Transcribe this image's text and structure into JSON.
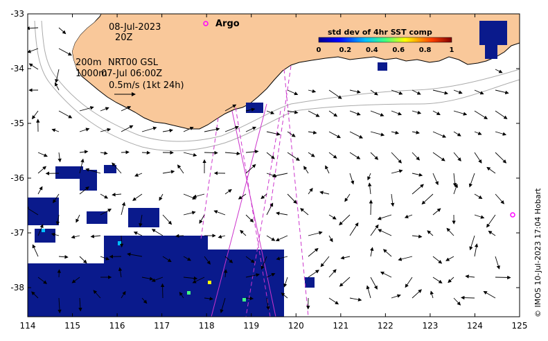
{
  "map": {
    "date": "08-Jul-2023",
    "hour": "20Z",
    "depth_200": "200m",
    "depth_1000": "1000m",
    "product": "NRT00 GSL",
    "product_time": "07-Jul 06:00Z",
    "scale_label": "0.5m/s (1kt 24h)",
    "argo_label": "Argo",
    "colorbar_title": "std dev of 4hr SST comp",
    "colorbar_ticks": [
      "0",
      "0.2",
      "0.4",
      "0.6",
      "0.8",
      "1"
    ],
    "credit": "© IMOS 10-Jul-2023 17:04 Hobart",
    "x_ticks": [
      "114",
      "115",
      "116",
      "117",
      "118",
      "119",
      "120",
      "121",
      "122",
      "123",
      "124",
      "125"
    ],
    "y_ticks": [
      "-33",
      "-34",
      "-35",
      "-36",
      "-37",
      "-38"
    ],
    "colors": {
      "land": "#f9c89a",
      "argo": "#ff00ff",
      "tracks": "#cc33cc",
      "sst_dark": "#0a1a8c",
      "bathymetry": "#aaaaaa"
    }
  }
}
